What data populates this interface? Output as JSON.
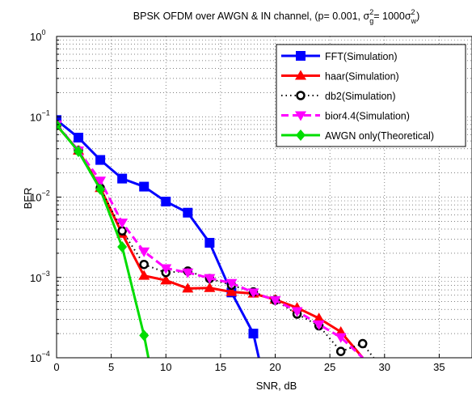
{
  "chart_data": {
    "type": "line",
    "title_prefix": "BPSK OFDM over AWGN & IN channel, (p= 0.001, ",
    "title_math": {
      "sigma": "σ",
      "sub_g": "g",
      "sub_w": "w",
      "sup": "2",
      "eq": "= 1000"
    },
    "title_suffix": ")",
    "xlabel": "SNR, dB",
    "ylabel": "BER",
    "xlim": [
      0,
      38
    ],
    "ylim": [
      0.0001,
      1
    ],
    "yscale": "log",
    "grid": true,
    "legend_position": "top-right",
    "x_ticks": [
      "0",
      "5",
      "10",
      "15",
      "20",
      "25",
      "30",
      "35"
    ],
    "y_tick_base": "10",
    "y_tick_exponents": [
      "0",
      "−1",
      "−2",
      "−3",
      "−4"
    ],
    "series": [
      {
        "name": "FFT(Simulation)",
        "color": "#0000ff",
        "marker": "square",
        "line_style": "solid",
        "x": [
          0,
          2,
          4,
          6,
          8,
          10,
          12,
          14,
          16,
          18,
          18.5
        ],
        "y": [
          0.091,
          0.055,
          0.029,
          0.017,
          0.0135,
          0.0088,
          0.0064,
          0.0027,
          0.00065,
          0.0002,
          0.0001
        ]
      },
      {
        "name": "haar(Simulation)",
        "color": "#ff0000",
        "marker": "triangle-up",
        "line_style": "solid",
        "x": [
          0,
          2,
          4,
          6,
          8,
          10,
          12,
          14,
          16,
          18,
          20,
          22,
          24,
          26,
          28
        ],
        "y": [
          0.078,
          0.038,
          0.013,
          0.0035,
          0.00105,
          0.00092,
          0.00073,
          0.00074,
          0.00066,
          0.00063,
          0.00053,
          0.00042,
          0.00031,
          0.00021,
          0.0001
        ]
      },
      {
        "name": "db2(Simulation)",
        "color": "#000000",
        "marker": "circle",
        "line_style": "dotted",
        "x": [
          0,
          2,
          4,
          6,
          8,
          10,
          12,
          14,
          16,
          18,
          20,
          22,
          24,
          26,
          28,
          29
        ],
        "y": [
          0.078,
          0.038,
          0.013,
          0.0038,
          0.00145,
          0.00115,
          0.0012,
          0.00097,
          0.0008,
          0.00066,
          0.00052,
          0.00035,
          0.00025,
          0.00012,
          0.00015,
          0.0001
        ]
      },
      {
        "name": "bior4.4(Simulation)",
        "color": "#ff00ff",
        "marker": "triangle-down",
        "line_style": "dashed",
        "x": [
          0,
          2,
          4,
          6,
          8,
          10,
          12,
          14,
          16,
          18,
          20,
          22,
          24,
          26,
          28
        ],
        "y": [
          0.08,
          0.038,
          0.016,
          0.0048,
          0.0021,
          0.0013,
          0.00115,
          0.00098,
          0.00085,
          0.00065,
          0.00052,
          0.00038,
          0.00026,
          0.00018,
          0.0001
        ]
      },
      {
        "name": "AWGN only(Theoretical)",
        "color": "#00dd00",
        "marker": "diamond",
        "line_style": "solid",
        "x": [
          0,
          2,
          4,
          6,
          8,
          8.4
        ],
        "y": [
          0.079,
          0.037,
          0.0125,
          0.0024,
          0.00019,
          0.0001
        ]
      }
    ]
  }
}
